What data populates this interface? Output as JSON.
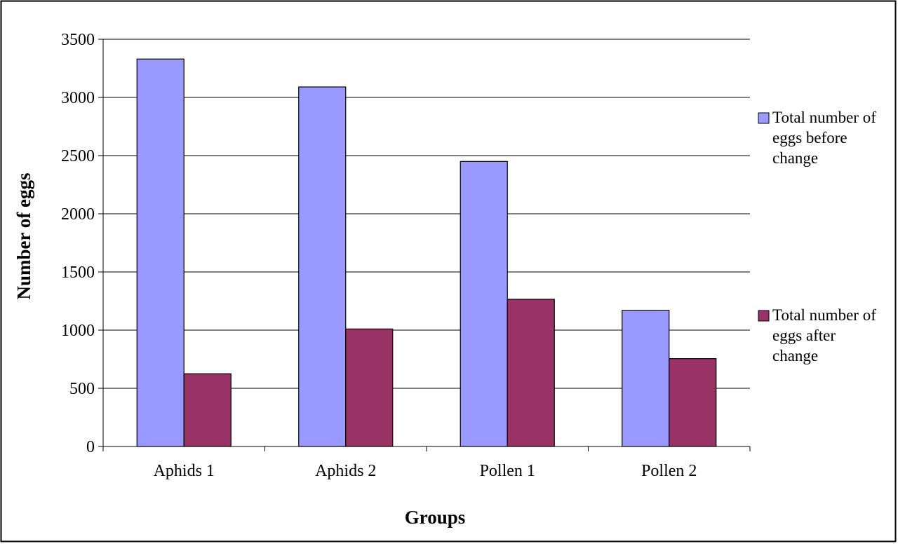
{
  "chart_data": {
    "type": "bar",
    "title": "",
    "xlabel": "Groups",
    "ylabel": "Number of eggs",
    "categories": [
      "Aphids 1",
      "Aphids 2",
      "Pollen 1",
      "Pollen 2"
    ],
    "series": [
      {
        "name": "Total number of eggs before change",
        "legend_lines": [
          "Total number of",
          "eggs before",
          "change"
        ],
        "color": "#9999ff",
        "values": [
          3330,
          3090,
          2450,
          1170
        ]
      },
      {
        "name": "Total number of eggs after change",
        "legend_lines": [
          "Total number of",
          "eggs after",
          "change"
        ],
        "color": "#993366",
        "values": [
          625,
          1010,
          1265,
          755
        ]
      }
    ],
    "ylim": [
      0,
      3500
    ],
    "yticks": [
      0,
      500,
      1000,
      1500,
      2000,
      2500,
      3000,
      3500
    ],
    "grid": true,
    "legend_position": "right"
  }
}
